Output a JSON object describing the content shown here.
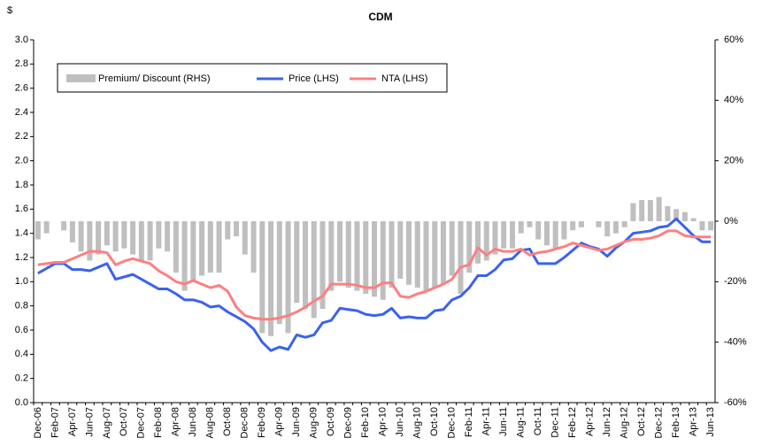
{
  "chart_data": {
    "type": "bar-line",
    "title": "CDM",
    "y_label": "$",
    "categories": [
      "Dec-06",
      null,
      "Feb-07",
      null,
      "Apr-07",
      null,
      "Jun-07",
      null,
      "Aug-07",
      null,
      "Oct-07",
      null,
      "Dec-07",
      null,
      "Feb-08",
      null,
      "Apr-08",
      null,
      "Jun-08",
      null,
      "Aug-08",
      null,
      "Oct-08",
      null,
      "Dec-08",
      null,
      "Feb-09",
      null,
      "Apr-09",
      null,
      "Jun-09",
      null,
      "Aug-09",
      null,
      "Oct-09",
      null,
      "Dec-09",
      null,
      "Feb-10",
      null,
      "Apr-10",
      null,
      "Jun-10",
      null,
      "Aug-10",
      null,
      "Oct-10",
      null,
      "Dec-10",
      null,
      "Feb-11",
      null,
      "Apr-11",
      null,
      "Jun-11",
      null,
      "Aug-11",
      null,
      "Oct-11",
      null,
      "Dec-11",
      null,
      "Feb-12",
      null,
      "Apr-12",
      null,
      "Jun-12",
      null,
      "Aug-12",
      null,
      "Oct-12",
      null,
      "Dec-12",
      null,
      "Feb-13",
      null,
      "Apr-13",
      null,
      "Jun-13"
    ],
    "series": [
      {
        "name": "Premium/ Discount (RHS)",
        "color": "#bfbfbf",
        "axis": "y2",
        "kind": "bar",
        "values": [
          -6,
          -4,
          0,
          -3,
          -7,
          -10,
          -13,
          -11,
          -8,
          -10,
          -9,
          -11,
          -13,
          -13,
          -9,
          -10,
          -17,
          -23,
          -20,
          -18,
          -17,
          -17,
          -6,
          -5,
          -11,
          -17,
          -37,
          -38,
          -34,
          -37,
          -27,
          -29,
          -32,
          -29,
          -23,
          -20,
          -22,
          -23,
          -24,
          -25,
          -26,
          -22,
          -19,
          -21,
          -22,
          -23,
          -22,
          -21,
          -18,
          -24,
          -17,
          -14,
          -13,
          -11,
          -9,
          -9,
          -4,
          -2,
          -6,
          -8,
          -9,
          -6,
          -3,
          -2,
          0,
          -2,
          -5,
          -4,
          -2,
          6,
          7,
          7,
          8,
          5,
          4,
          3,
          1,
          -3,
          -3
        ]
      },
      {
        "name": "Price (LHS)",
        "color": "#3a62f0",
        "kind": "line",
        "values": [
          1.07,
          1.11,
          1.15,
          1.15,
          1.1,
          1.1,
          1.09,
          1.12,
          1.15,
          1.02,
          1.04,
          1.06,
          1.02,
          0.98,
          0.94,
          0.94,
          0.9,
          0.85,
          0.85,
          0.83,
          0.79,
          0.8,
          0.75,
          0.71,
          0.67,
          0.61,
          0.5,
          0.43,
          0.46,
          0.44,
          0.56,
          0.54,
          0.56,
          0.66,
          0.68,
          0.78,
          0.77,
          0.76,
          0.73,
          0.72,
          0.73,
          0.78,
          0.7,
          0.71,
          0.7,
          0.7,
          0.76,
          0.77,
          0.85,
          0.88,
          0.95,
          1.05,
          1.05,
          1.1,
          1.18,
          1.19,
          1.26,
          1.27,
          1.15,
          1.15,
          1.15,
          1.2,
          1.26,
          1.32,
          1.29,
          1.27,
          1.21,
          1.28,
          1.33,
          1.4,
          1.41,
          1.42,
          1.45,
          1.46,
          1.52,
          1.45,
          1.38,
          1.33,
          1.33
        ]
      },
      {
        "name": "NTA (LHS)",
        "color": "#ff7f7f",
        "kind": "line",
        "values": [
          1.14,
          1.15,
          1.16,
          1.16,
          1.19,
          1.22,
          1.25,
          1.25,
          1.24,
          1.14,
          1.17,
          1.19,
          1.17,
          1.15,
          1.09,
          1.05,
          1.0,
          0.98,
          1.01,
          0.98,
          0.95,
          0.97,
          0.92,
          0.79,
          0.72,
          0.7,
          0.69,
          0.69,
          0.7,
          0.72,
          0.75,
          0.79,
          0.84,
          0.88,
          0.98,
          0.98,
          0.98,
          0.97,
          0.95,
          0.95,
          0.99,
          0.99,
          0.88,
          0.87,
          0.9,
          0.92,
          0.95,
          0.98,
          1.02,
          1.12,
          1.14,
          1.28,
          1.22,
          1.27,
          1.25,
          1.25,
          1.27,
          1.22,
          1.24,
          1.25,
          1.27,
          1.29,
          1.32,
          1.3,
          1.28,
          1.26,
          1.27,
          1.3,
          1.33,
          1.35,
          1.35,
          1.36,
          1.38,
          1.42,
          1.42,
          1.38,
          1.37,
          1.37,
          1.37
        ]
      }
    ],
    "ylim": [
      0,
      3
    ],
    "yticks": [
      {
        "value": 0,
        "label": "0.0"
      },
      0.2,
      0.4,
      0.6,
      0.8,
      {
        "value": 1,
        "label": "1.0"
      },
      1.2,
      1.4,
      1.6,
      1.8,
      {
        "value": 2,
        "label": "2.0"
      },
      2.2,
      2.4,
      2.6,
      2.8,
      {
        "value": 3,
        "label": "3.0"
      }
    ],
    "y2lim": [
      -60,
      60
    ],
    "y2ticks": [
      {
        "value": -60,
        "label": "-60%"
      },
      {
        "value": -40,
        "label": "-40%"
      },
      {
        "value": -20,
        "label": "-20%"
      },
      {
        "value": 0,
        "label": "0%"
      },
      {
        "value": 20,
        "label": "20%"
      },
      {
        "value": 40,
        "label": "40%"
      },
      {
        "value": 60,
        "label": "60%"
      }
    ],
    "grid": false,
    "legend": "top-left"
  }
}
